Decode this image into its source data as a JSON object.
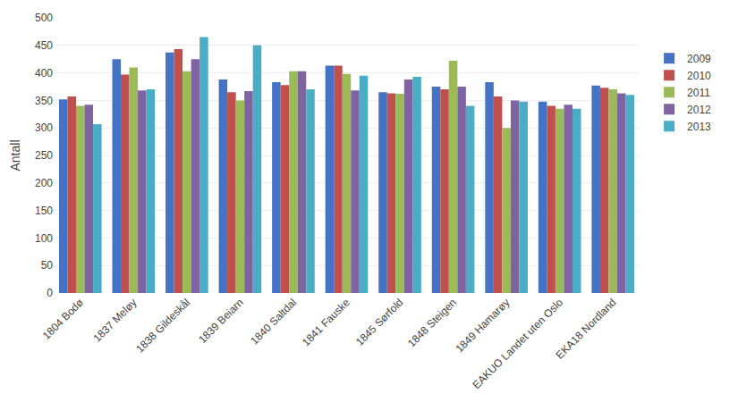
{
  "chart_data": {
    "type": "bar",
    "categories": [
      "1804 Bodø",
      "1837 Meløy",
      "1838 Gildeskål",
      "1839 Beiarn",
      "1840 Saltdal",
      "1841 Fauske",
      "1845 Sørfold",
      "1848 Steigen",
      "1849 Hamarøy",
      "EAKUO Landet uten Oslo",
      "EKA18 Nordland"
    ],
    "series": [
      {
        "name": "2009",
        "color": "#4472C4",
        "values": [
          352,
          425,
          437,
          388,
          383,
          413,
          365,
          375,
          383,
          348,
          377
        ]
      },
      {
        "name": "2010",
        "color": "#C0504D",
        "values": [
          357,
          397,
          443,
          365,
          378,
          413,
          363,
          370,
          357,
          340,
          373
        ]
      },
      {
        "name": "2011",
        "color": "#9BBB59",
        "values": [
          340,
          410,
          403,
          350,
          403,
          398,
          362,
          422,
          300,
          335,
          370
        ]
      },
      {
        "name": "2012",
        "color": "#8064A2",
        "values": [
          342,
          368,
          425,
          367,
          403,
          368,
          388,
          375,
          350,
          342,
          363
        ]
      },
      {
        "name": "2013",
        "color": "#4BACC6",
        "values": [
          307,
          370,
          465,
          450,
          370,
          395,
          393,
          340,
          348,
          335,
          360
        ]
      }
    ],
    "ylabel": "Antall",
    "ylim": [
      0,
      500
    ],
    "yticks": [
      0,
      50,
      100,
      150,
      200,
      250,
      300,
      350,
      400,
      450,
      500
    ],
    "grid": true,
    "legend": "upper right"
  }
}
